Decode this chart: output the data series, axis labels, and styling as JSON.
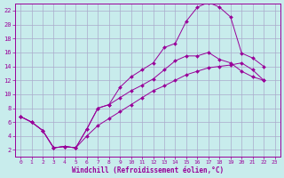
{
  "xlabel": "Windchill (Refroidissement éolien,°C)",
  "bg_color": "#c8ecec",
  "line_color": "#990099",
  "grid_color": "#aaaacc",
  "xlim": [
    -0.5,
    23.5
  ],
  "ylim": [
    1,
    23
  ],
  "xticks": [
    0,
    1,
    2,
    3,
    4,
    5,
    6,
    7,
    8,
    9,
    10,
    11,
    12,
    13,
    14,
    15,
    16,
    17,
    18,
    19,
    20,
    21,
    22,
    23
  ],
  "yticks": [
    2,
    4,
    6,
    8,
    10,
    12,
    14,
    16,
    18,
    20,
    22
  ],
  "line1_x": [
    0,
    1,
    2,
    3,
    4,
    5,
    6,
    7,
    8,
    9,
    10,
    11,
    12,
    13,
    14,
    15,
    16,
    17,
    18,
    19,
    20,
    21,
    22
  ],
  "line1_y": [
    6.8,
    6.0,
    4.8,
    2.3,
    2.5,
    2.3,
    5.0,
    8.0,
    8.5,
    11.0,
    12.5,
    13.5,
    14.5,
    16.7,
    17.3,
    20.5,
    22.5,
    23.2,
    22.5,
    21.1,
    15.9,
    15.2,
    14.0
  ],
  "line2_x": [
    0,
    1,
    2,
    3,
    4,
    5,
    6,
    7,
    8,
    9,
    10,
    11,
    12,
    13,
    14,
    15,
    16,
    17,
    18,
    19,
    20,
    21,
    22
  ],
  "line2_y": [
    6.8,
    6.0,
    4.8,
    2.3,
    2.5,
    2.3,
    5.0,
    8.0,
    8.5,
    9.5,
    10.5,
    11.3,
    12.2,
    13.5,
    14.8,
    15.5,
    15.5,
    16.0,
    15.0,
    14.5,
    13.3,
    12.5,
    12.0
  ],
  "line3_x": [
    0,
    1,
    2,
    3,
    4,
    5,
    6,
    7,
    8,
    9,
    10,
    11,
    12,
    13,
    14,
    15,
    16,
    17,
    18,
    19,
    20,
    21,
    22
  ],
  "line3_y": [
    6.8,
    6.0,
    4.8,
    2.3,
    2.5,
    2.3,
    4.0,
    5.5,
    6.5,
    7.5,
    8.5,
    9.5,
    10.5,
    11.2,
    12.0,
    12.8,
    13.3,
    13.8,
    14.0,
    14.2,
    14.5,
    13.5,
    12.0
  ]
}
